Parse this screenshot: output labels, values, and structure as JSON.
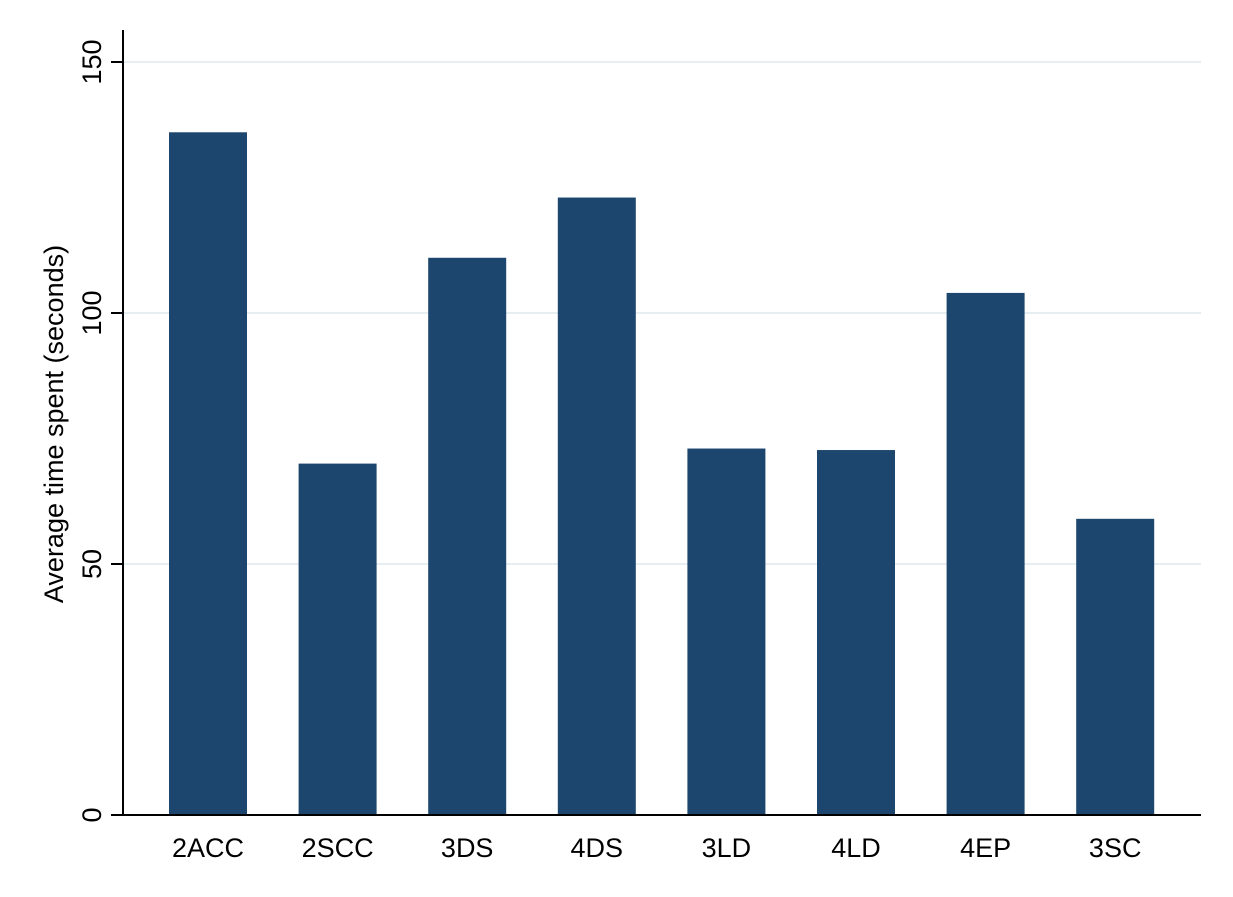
{
  "chart_data": {
    "type": "bar",
    "title": "",
    "xlabel": "",
    "ylabel": "Average time spent (seconds)",
    "categories": [
      "2ACC",
      "2SCC",
      "3DS",
      "4DS",
      "3LD",
      "4LD",
      "4EP",
      "3SC"
    ],
    "values": [
      136,
      70,
      111,
      123,
      73,
      72.7,
      104,
      59
    ],
    "ylim": [
      0,
      150
    ],
    "yticks": [
      0,
      50,
      100,
      150
    ],
    "ytick_labels": [
      "0",
      "50",
      "100",
      "150"
    ],
    "grid": true,
    "legend": "none",
    "colors": {
      "bar": "#1c466e",
      "grid": "#e7eef2",
      "axis": "#000000",
      "background": "#ffffff"
    }
  }
}
